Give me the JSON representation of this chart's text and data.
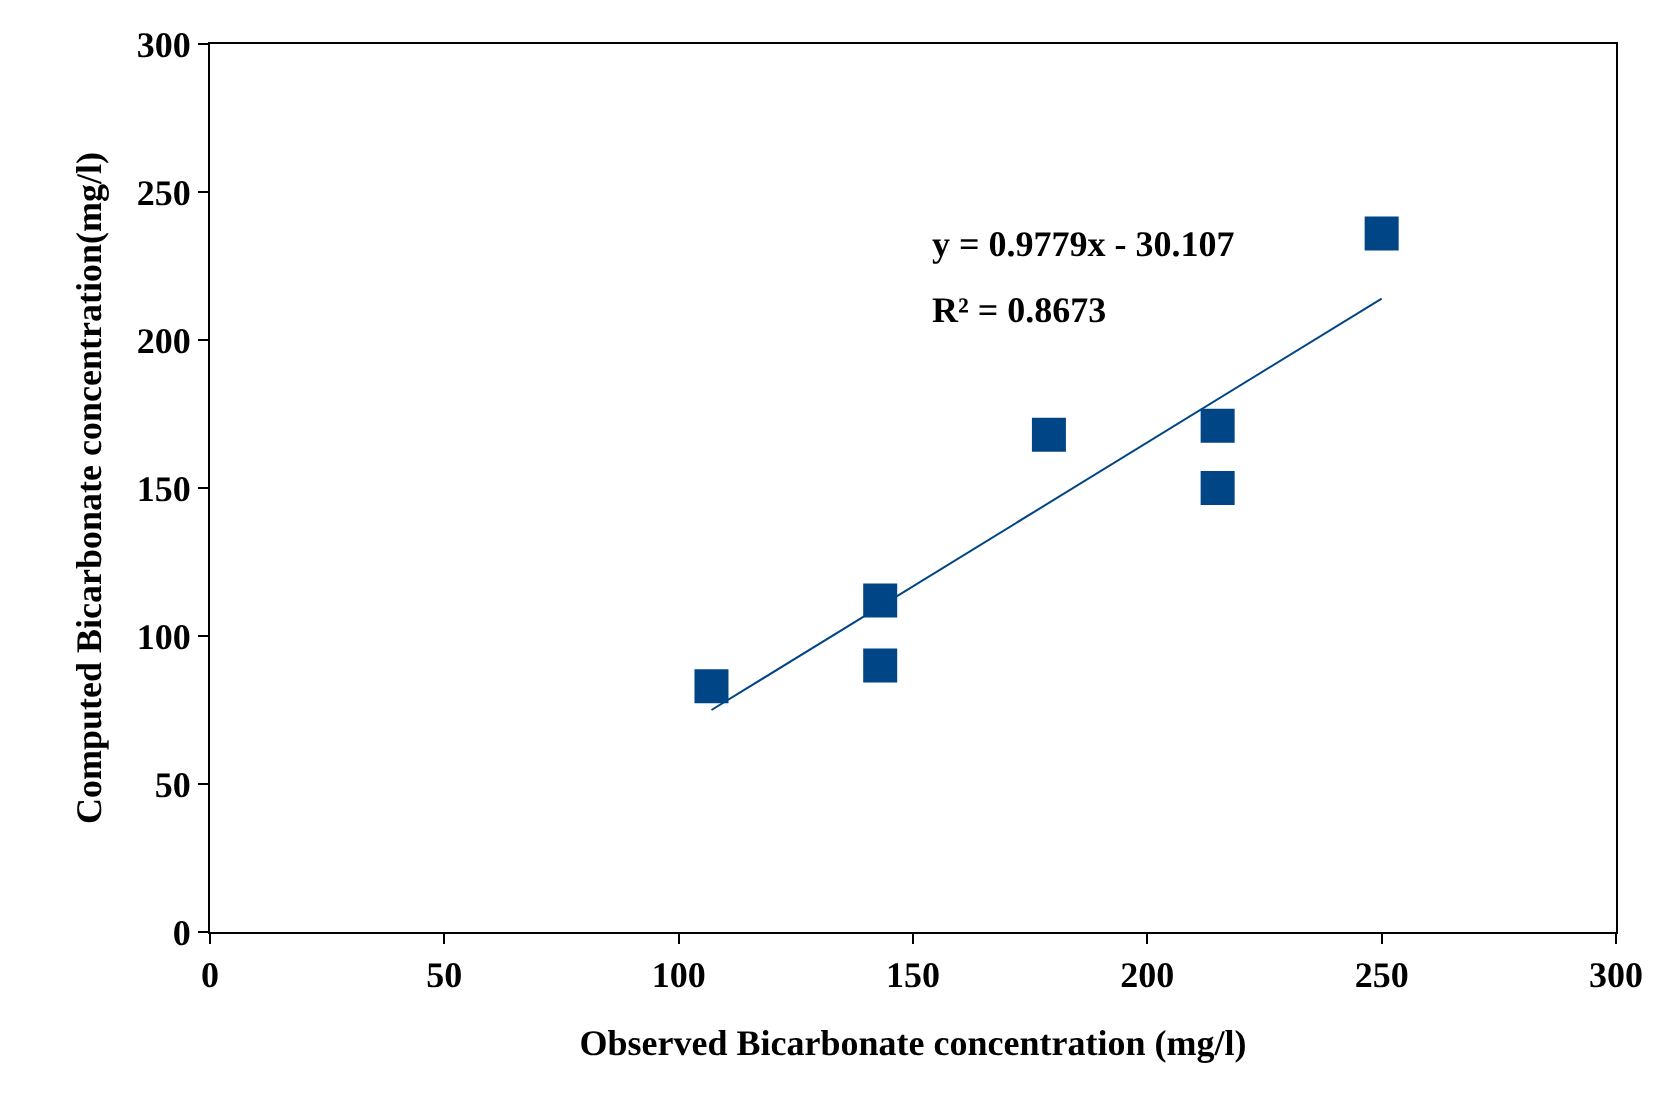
{
  "chart_data": {
    "type": "scatter",
    "xlabel": "Observed Bicarbonate concentration (mg/l)",
    "ylabel": "Computed Bicarbonate concentration(mg/l)",
    "marker": "square",
    "xlim": [
      0,
      300
    ],
    "xticks": [
      0,
      50,
      100,
      150,
      200,
      250,
      300
    ],
    "ylim": [
      0,
      300
    ],
    "yticks": [
      0,
      50,
      100,
      150,
      200,
      250,
      300
    ],
    "series": [
      {
        "color": "#004586",
        "x": [
          107,
          143,
          143,
          179,
          215,
          215,
          250
        ],
        "values": [
          83,
          112,
          90,
          168,
          171,
          150,
          236
        ]
      },
      {
        "type": "line",
        "marker": "none",
        "color": "#004586",
        "x": [
          107,
          250
        ],
        "values": [
          75,
          214
        ]
      }
    ],
    "annotations": [
      "y = 0.9779x - 30.107",
      "R² = 0.8673"
    ]
  }
}
